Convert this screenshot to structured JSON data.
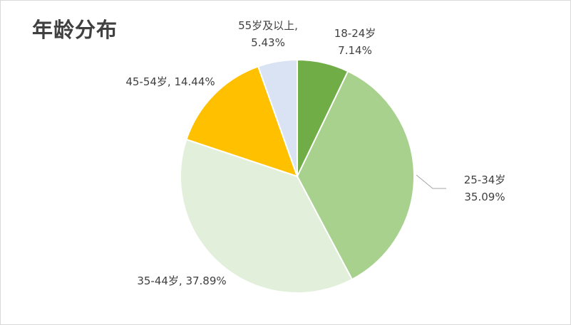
{
  "chart_data": {
    "type": "pie",
    "title": "年龄分布",
    "categories": [
      "18-24岁",
      "25-34岁",
      "35-44岁",
      "45-54岁",
      "55岁及以上"
    ],
    "values": [
      7.14,
      35.09,
      37.89,
      14.44,
      5.43
    ],
    "value_labels": [
      "7.14%",
      "35.09%",
      "37.89%",
      "14.44%",
      "5.43%"
    ],
    "colors": [
      "#70ad47",
      "#a9d18e",
      "#e2efda",
      "#ffc000",
      "#dae3f3"
    ],
    "label_lines": [
      [
        "18-24岁",
        "7.14%"
      ],
      [
        "25-34岁",
        "35.09%"
      ],
      [
        "35-44岁, 37.89%"
      ],
      [
        "45-54岁, 14.44%"
      ],
      [
        "55岁及以上,",
        "5.43%"
      ]
    ],
    "start_angle_deg": 0,
    "direction": "clockwise",
    "legend": "none"
  }
}
